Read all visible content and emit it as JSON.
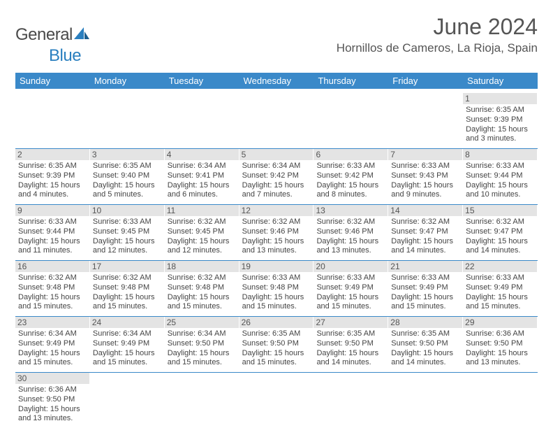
{
  "brand": {
    "part1": "General",
    "part2": "Blue"
  },
  "title": "June 2024",
  "location": "Hornillos de Cameros, La Rioja, Spain",
  "colors": {
    "header_bg": "#3a89c9",
    "daynum_bg": "#e4e4e4",
    "rule": "#3a89c9"
  },
  "dayNames": [
    "Sunday",
    "Monday",
    "Tuesday",
    "Wednesday",
    "Thursday",
    "Friday",
    "Saturday"
  ],
  "weeks": [
    [
      null,
      null,
      null,
      null,
      null,
      null,
      {
        "n": "1",
        "sr": "6:35 AM",
        "ss": "9:39 PM",
        "dl": "15 hours and 3 minutes."
      }
    ],
    [
      {
        "n": "2",
        "sr": "6:35 AM",
        "ss": "9:39 PM",
        "dl": "15 hours and 4 minutes."
      },
      {
        "n": "3",
        "sr": "6:35 AM",
        "ss": "9:40 PM",
        "dl": "15 hours and 5 minutes."
      },
      {
        "n": "4",
        "sr": "6:34 AM",
        "ss": "9:41 PM",
        "dl": "15 hours and 6 minutes."
      },
      {
        "n": "5",
        "sr": "6:34 AM",
        "ss": "9:42 PM",
        "dl": "15 hours and 7 minutes."
      },
      {
        "n": "6",
        "sr": "6:33 AM",
        "ss": "9:42 PM",
        "dl": "15 hours and 8 minutes."
      },
      {
        "n": "7",
        "sr": "6:33 AM",
        "ss": "9:43 PM",
        "dl": "15 hours and 9 minutes."
      },
      {
        "n": "8",
        "sr": "6:33 AM",
        "ss": "9:44 PM",
        "dl": "15 hours and 10 minutes."
      }
    ],
    [
      {
        "n": "9",
        "sr": "6:33 AM",
        "ss": "9:44 PM",
        "dl": "15 hours and 11 minutes."
      },
      {
        "n": "10",
        "sr": "6:33 AM",
        "ss": "9:45 PM",
        "dl": "15 hours and 12 minutes."
      },
      {
        "n": "11",
        "sr": "6:32 AM",
        "ss": "9:45 PM",
        "dl": "15 hours and 12 minutes."
      },
      {
        "n": "12",
        "sr": "6:32 AM",
        "ss": "9:46 PM",
        "dl": "15 hours and 13 minutes."
      },
      {
        "n": "13",
        "sr": "6:32 AM",
        "ss": "9:46 PM",
        "dl": "15 hours and 13 minutes."
      },
      {
        "n": "14",
        "sr": "6:32 AM",
        "ss": "9:47 PM",
        "dl": "15 hours and 14 minutes."
      },
      {
        "n": "15",
        "sr": "6:32 AM",
        "ss": "9:47 PM",
        "dl": "15 hours and 14 minutes."
      }
    ],
    [
      {
        "n": "16",
        "sr": "6:32 AM",
        "ss": "9:48 PM",
        "dl": "15 hours and 15 minutes."
      },
      {
        "n": "17",
        "sr": "6:32 AM",
        "ss": "9:48 PM",
        "dl": "15 hours and 15 minutes."
      },
      {
        "n": "18",
        "sr": "6:32 AM",
        "ss": "9:48 PM",
        "dl": "15 hours and 15 minutes."
      },
      {
        "n": "19",
        "sr": "6:33 AM",
        "ss": "9:48 PM",
        "dl": "15 hours and 15 minutes."
      },
      {
        "n": "20",
        "sr": "6:33 AM",
        "ss": "9:49 PM",
        "dl": "15 hours and 15 minutes."
      },
      {
        "n": "21",
        "sr": "6:33 AM",
        "ss": "9:49 PM",
        "dl": "15 hours and 15 minutes."
      },
      {
        "n": "22",
        "sr": "6:33 AM",
        "ss": "9:49 PM",
        "dl": "15 hours and 15 minutes."
      }
    ],
    [
      {
        "n": "23",
        "sr": "6:34 AM",
        "ss": "9:49 PM",
        "dl": "15 hours and 15 minutes."
      },
      {
        "n": "24",
        "sr": "6:34 AM",
        "ss": "9:49 PM",
        "dl": "15 hours and 15 minutes."
      },
      {
        "n": "25",
        "sr": "6:34 AM",
        "ss": "9:50 PM",
        "dl": "15 hours and 15 minutes."
      },
      {
        "n": "26",
        "sr": "6:35 AM",
        "ss": "9:50 PM",
        "dl": "15 hours and 15 minutes."
      },
      {
        "n": "27",
        "sr": "6:35 AM",
        "ss": "9:50 PM",
        "dl": "15 hours and 14 minutes."
      },
      {
        "n": "28",
        "sr": "6:35 AM",
        "ss": "9:50 PM",
        "dl": "15 hours and 14 minutes."
      },
      {
        "n": "29",
        "sr": "6:36 AM",
        "ss": "9:50 PM",
        "dl": "15 hours and 13 minutes."
      }
    ],
    [
      {
        "n": "30",
        "sr": "6:36 AM",
        "ss": "9:50 PM",
        "dl": "15 hours and 13 minutes."
      },
      null,
      null,
      null,
      null,
      null,
      null
    ]
  ],
  "labels": {
    "sunrise": "Sunrise: ",
    "sunset": "Sunset: ",
    "daylight": "Daylight: "
  }
}
